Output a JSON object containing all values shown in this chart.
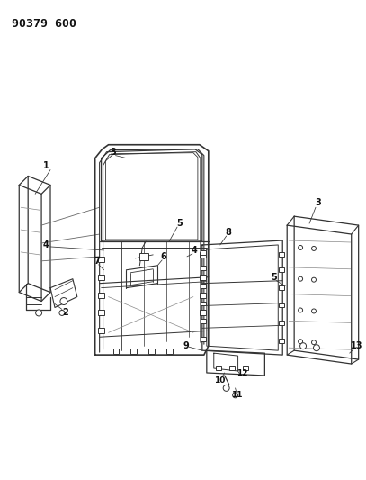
{
  "title": "90379 600",
  "bg_color": "#ffffff",
  "line_color": "#333333",
  "label_color": "#111111",
  "label_fontsize": 7.0,
  "fig_width": 4.07,
  "fig_height": 5.33,
  "dpi": 100
}
